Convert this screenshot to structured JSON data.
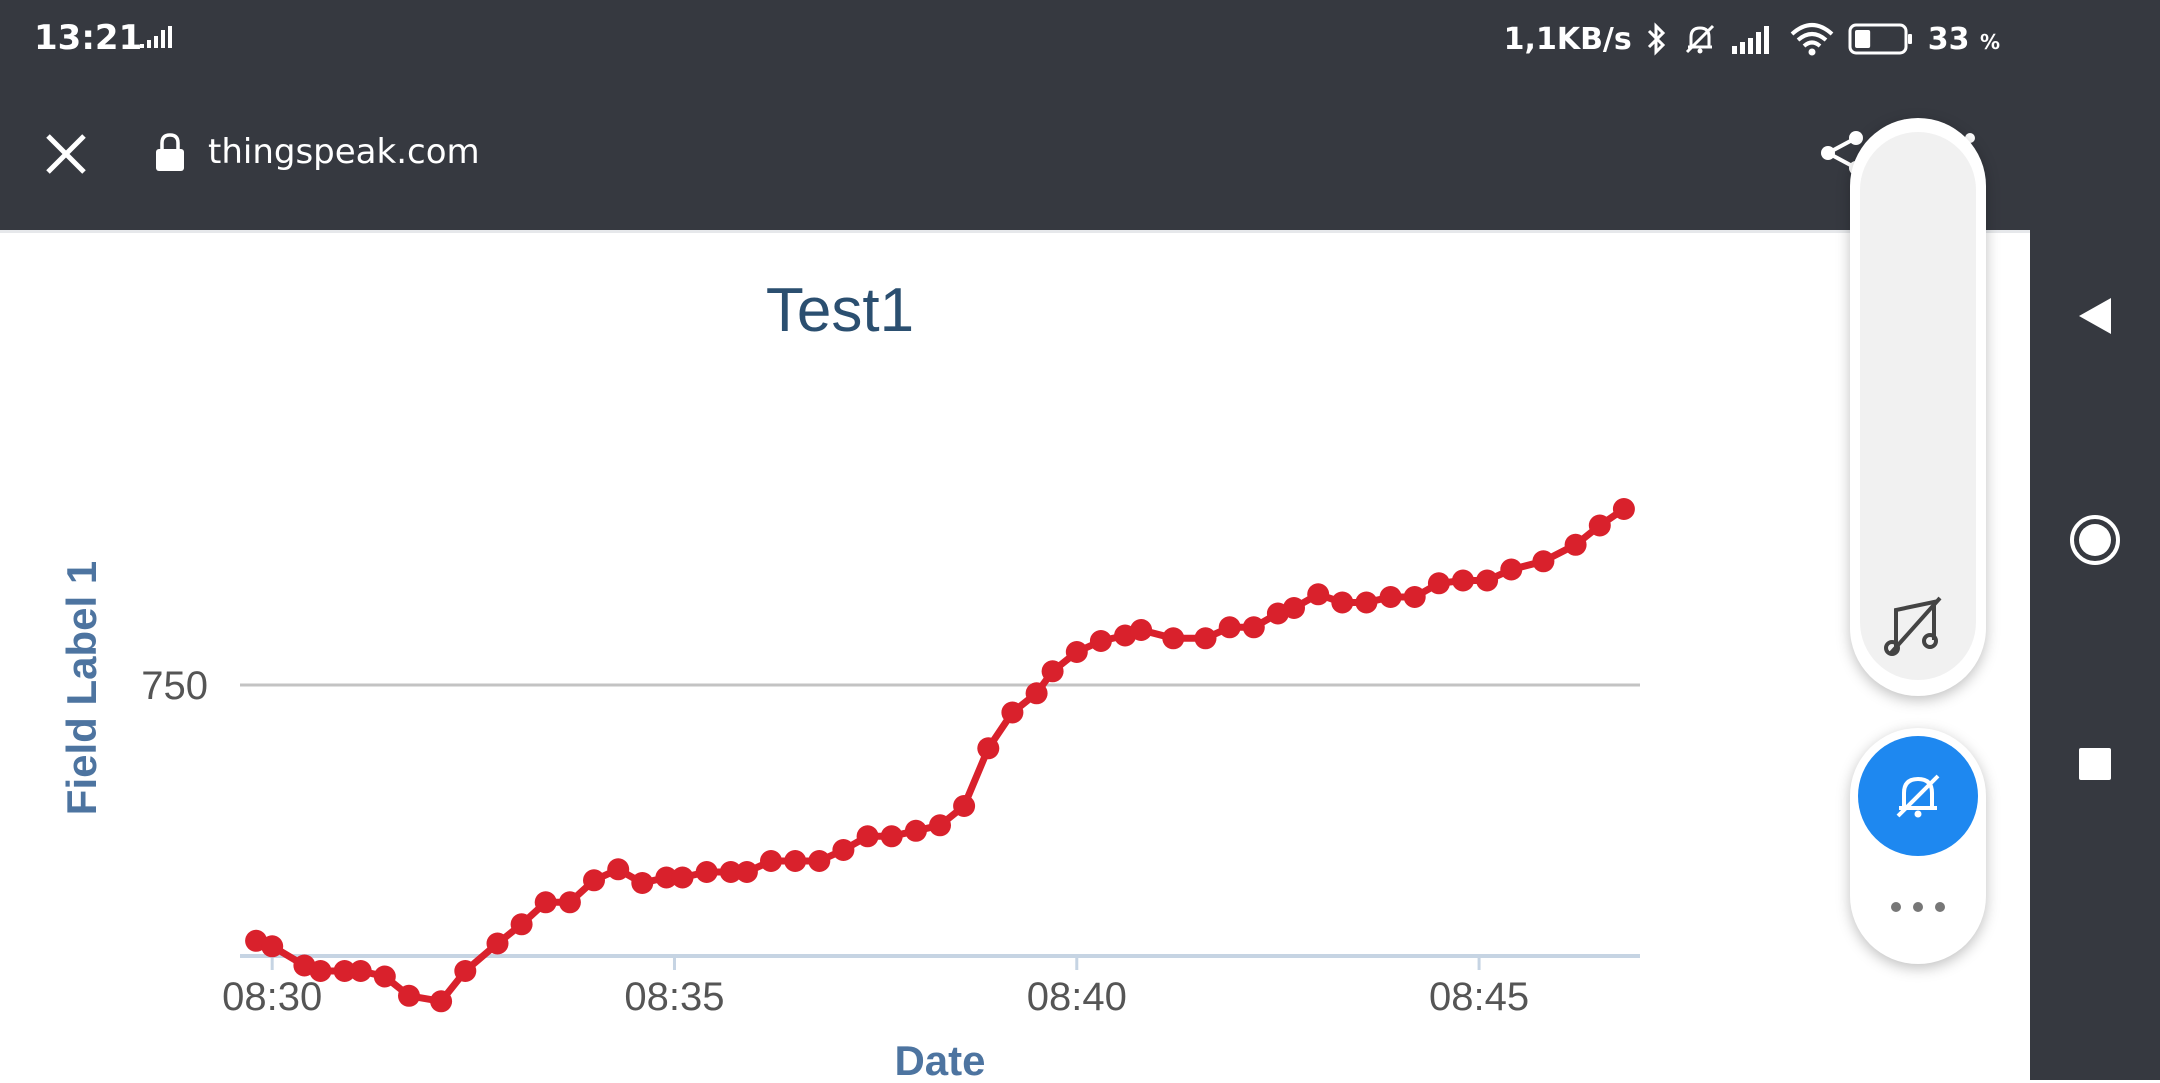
{
  "status_bar": {
    "time": "13:21",
    "speed": "1,1KB/s",
    "battery_percent": "33",
    "battery_unit": "%",
    "battery_level": 0.33
  },
  "browser": {
    "url": "thingspeak.com"
  },
  "chart_data": {
    "type": "line",
    "title": "Test1",
    "xlabel": "Date",
    "ylabel": "Field Label 1",
    "x_ticks": [
      "08:30",
      "08:35",
      "08:40",
      "08:45"
    ],
    "y_ticks": [
      "750"
    ],
    "series": [
      {
        "color": "#d9212c",
        "minutes": [
          29.8,
          30.0,
          30.4,
          30.6,
          30.9,
          31.1,
          31.4,
          31.7,
          32.1,
          32.4,
          32.8,
          33.1,
          33.4,
          33.7,
          34.0,
          34.3,
          34.6,
          34.9,
          35.1,
          35.4,
          35.7,
          35.9,
          36.2,
          36.5,
          36.8,
          37.1,
          37.4,
          37.7,
          38.0,
          38.3,
          38.6,
          38.9,
          39.2,
          39.5,
          39.7,
          40.0,
          40.3,
          40.6,
          40.8,
          41.2,
          41.6,
          41.9,
          42.2,
          42.5,
          42.7,
          43.0,
          43.3,
          43.6,
          43.9,
          44.2,
          44.5,
          44.8,
          45.1,
          45.4,
          45.8,
          46.2,
          46.5,
          46.8
        ],
        "values": [
          657,
          655,
          648,
          646,
          646,
          646,
          644,
          637,
          635,
          646,
          656,
          663,
          671,
          671,
          679,
          683,
          678,
          680,
          680,
          682,
          682,
          682,
          686,
          686,
          686,
          690,
          695,
          695,
          697,
          699,
          706,
          727,
          740,
          747,
          755,
          762,
          766,
          768,
          770,
          767,
          767,
          771,
          771,
          776,
          778,
          783,
          780,
          780,
          782,
          782,
          787,
          788,
          788,
          792,
          795,
          801,
          808,
          814
        ]
      }
    ]
  }
}
